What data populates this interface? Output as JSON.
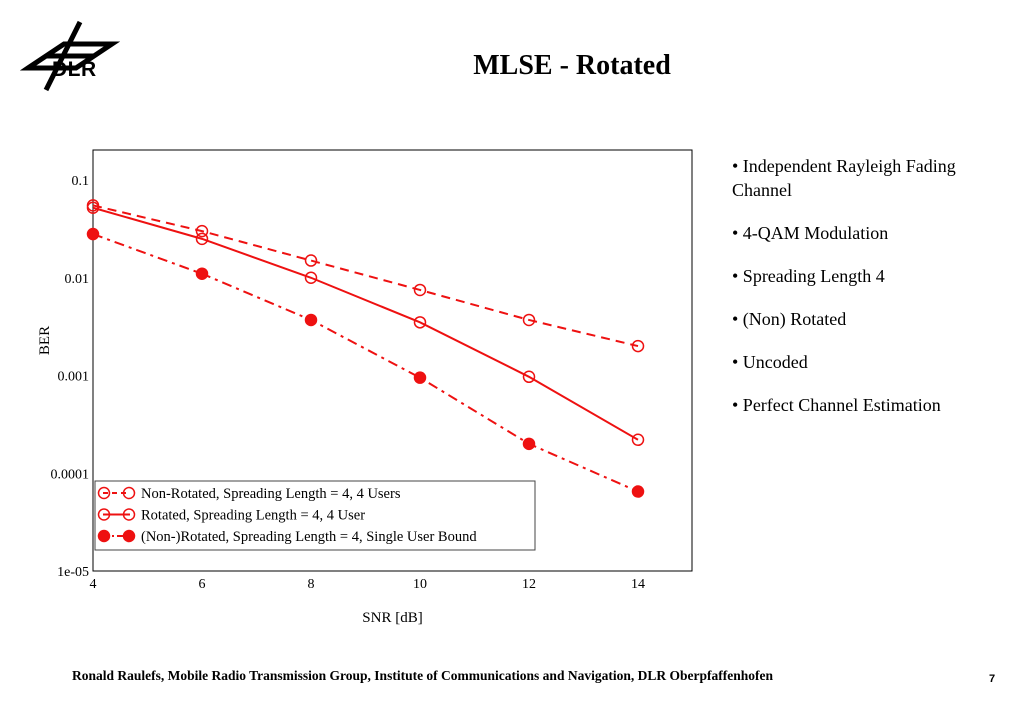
{
  "header": {
    "logo": {
      "icon": "dlr-logo-icon",
      "text": "DLR"
    },
    "title": "MLSE - Rotated"
  },
  "bullets": [
    "• Independent Rayleigh Fading Channel",
    "• 4-QAM Modulation",
    "• Spreading Length 4",
    "• (Non) Rotated",
    "• Uncoded",
    "• Perfect Channel Estimation"
  ],
  "footer": {
    "text": "Ronald Raulefs, Mobile Radio Transmission Group, Institute of Communications and Navigation, DLR Oberpfaffenhofen",
    "page": "7"
  },
  "chart_data": {
    "type": "line",
    "title": "",
    "xlabel": "SNR [dB]",
    "ylabel": "BER",
    "xlim": [
      4,
      15
    ],
    "ylim": [
      1e-05,
      0.3
    ],
    "yscale": "log",
    "xticks": [
      4,
      6,
      8,
      10,
      12,
      14
    ],
    "xtick_labels": [
      "4",
      "6",
      "8",
      "10",
      "12",
      "14"
    ],
    "yticks": [
      0.1,
      0.01,
      0.001,
      0.0001,
      1e-05
    ],
    "ytick_labels": [
      "0.1",
      "0.01",
      "0.001",
      "0.0001",
      "1e-05"
    ],
    "grid": true,
    "legend_position": "bottom-left",
    "color": "#ee1111",
    "series": [
      {
        "name": "Non-Rotated, Spreading Length = 4, 4 Users",
        "line": "dashed",
        "marker": "open-circle",
        "x": [
          4,
          6,
          8,
          10,
          12,
          14
        ],
        "y": [
          0.055,
          0.03,
          0.015,
          0.0075,
          0.0037,
          0.002
        ]
      },
      {
        "name": "Rotated, Spreading Length = 4, 4 User",
        "line": "solid",
        "marker": "open-circle",
        "x": [
          4,
          6,
          8,
          10,
          12,
          14
        ],
        "y": [
          0.052,
          0.025,
          0.01,
          0.0035,
          0.00097,
          0.00022
        ]
      },
      {
        "name": "(Non-)Rotated, Spreading Length = 4, Single User Bound",
        "line": "dashdot",
        "marker": "filled-circle",
        "x": [
          4,
          6,
          8,
          10,
          12,
          14
        ],
        "y": [
          0.028,
          0.011,
          0.0037,
          0.00095,
          0.0002,
          6.5e-05
        ]
      }
    ]
  }
}
